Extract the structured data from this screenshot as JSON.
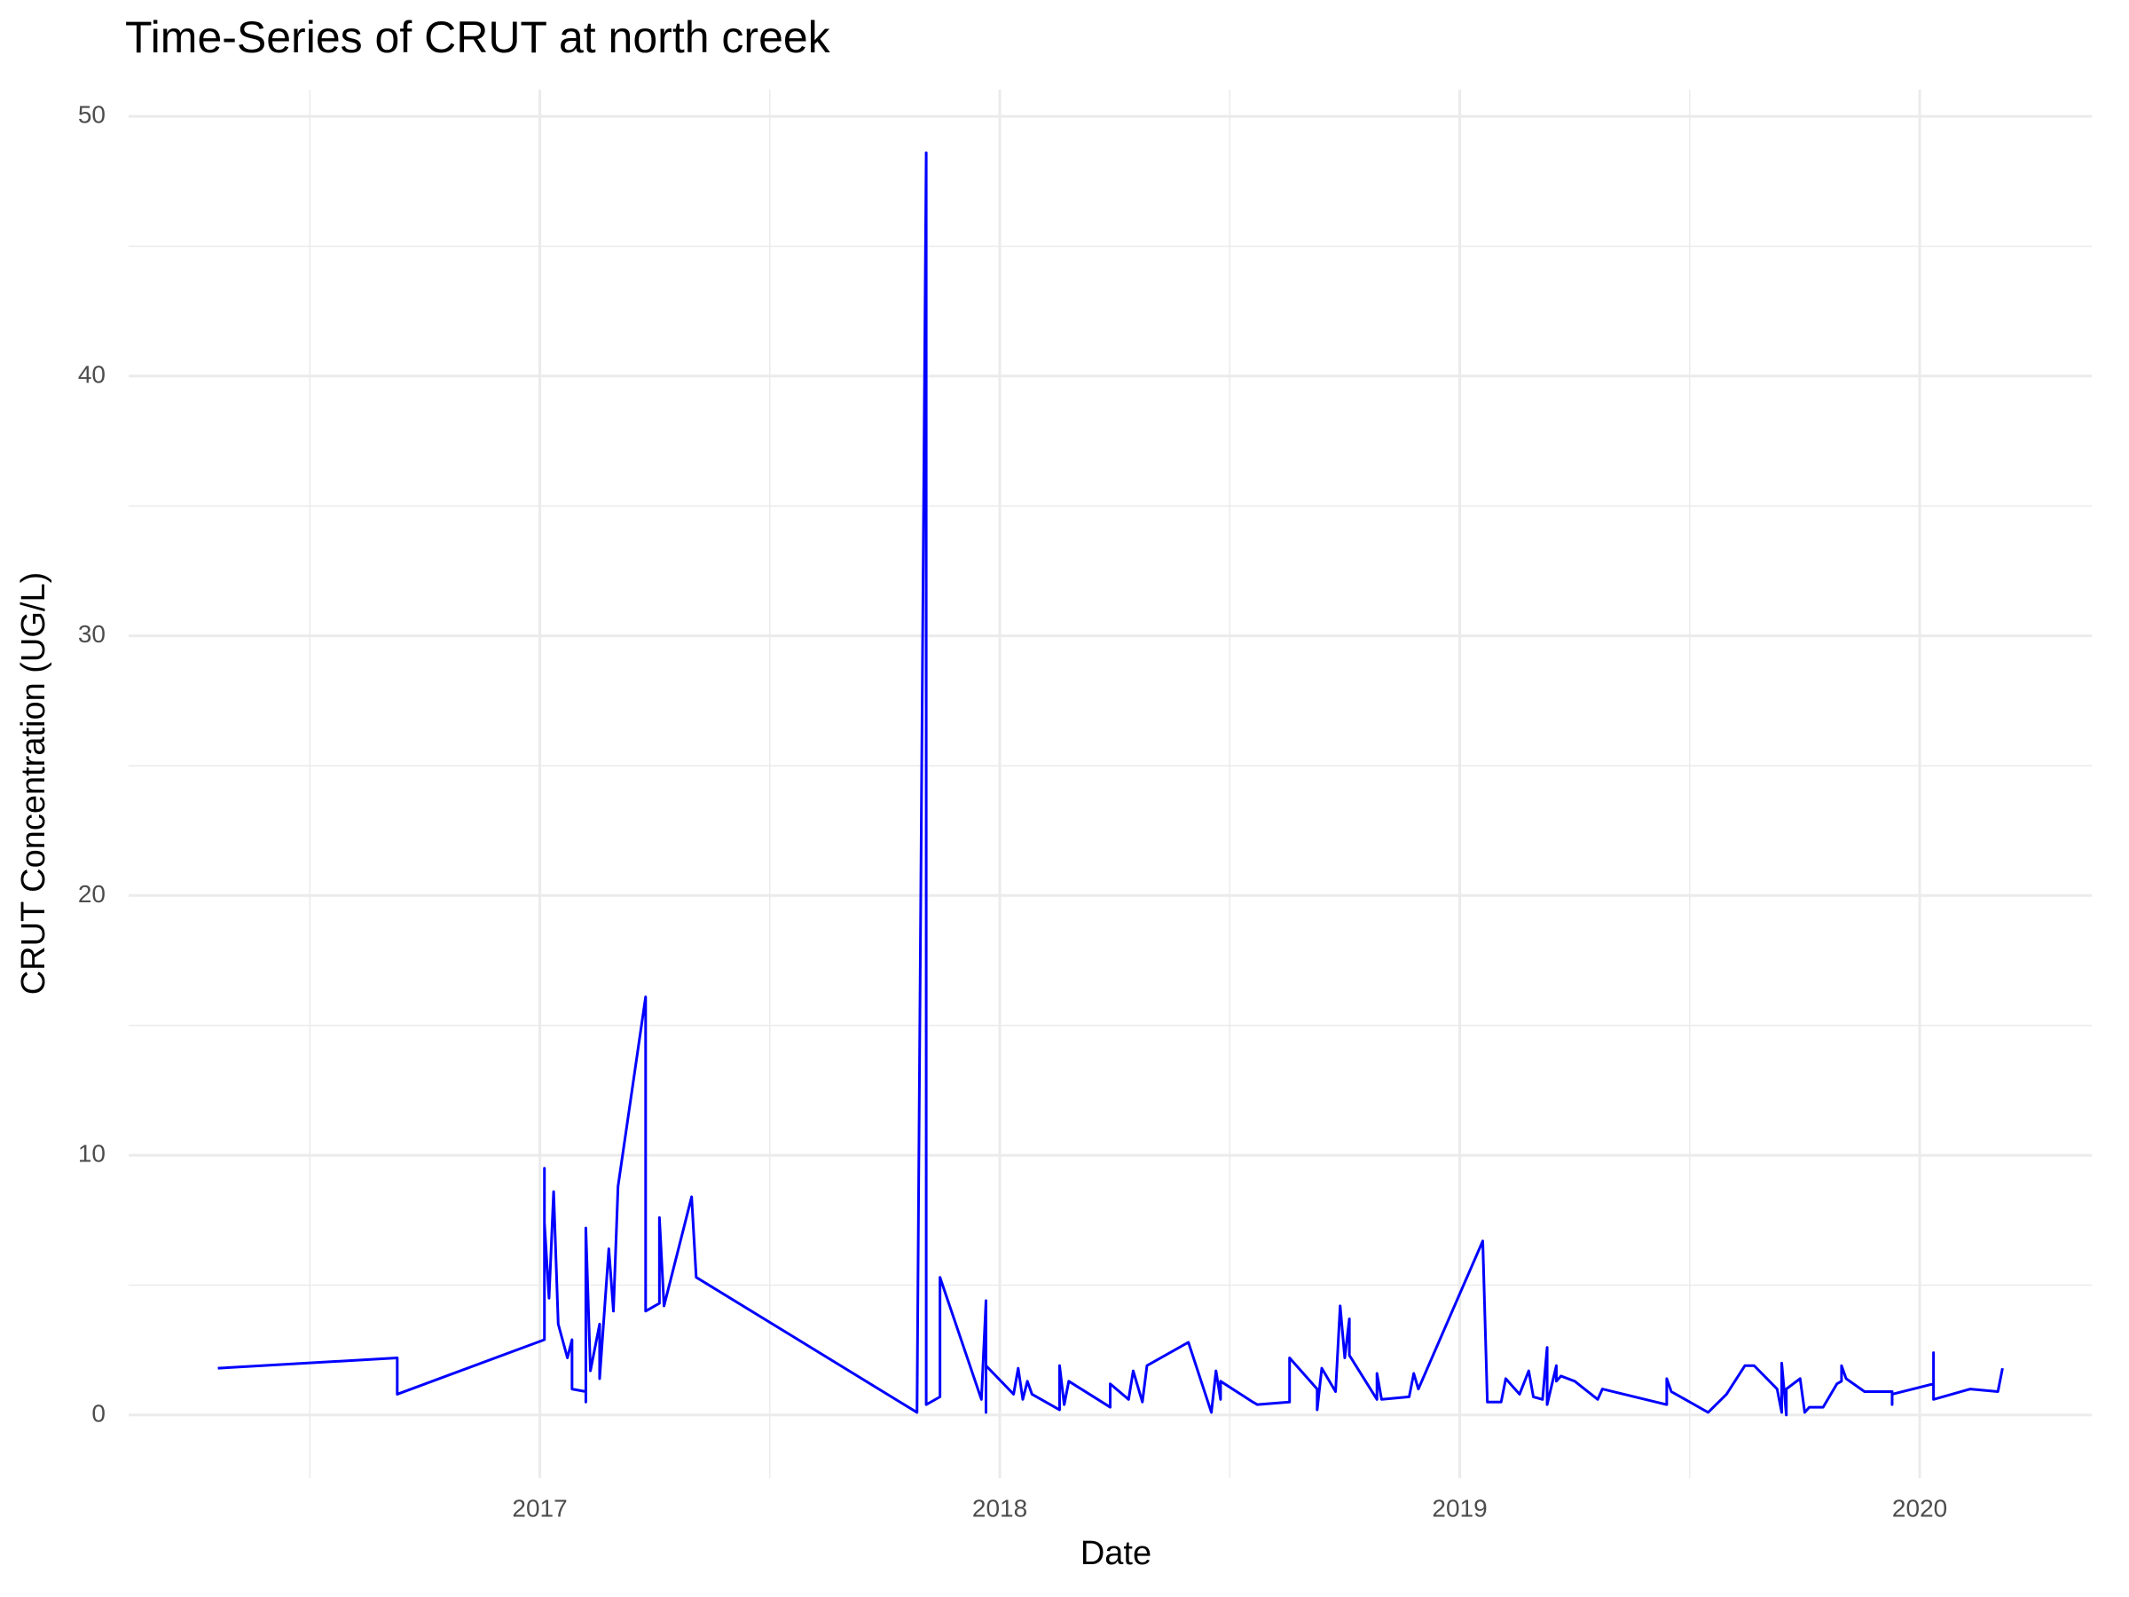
{
  "chart_data": {
    "type": "line",
    "title": "Time-Series of CRUT at north creek",
    "x_label": "Date",
    "y_label": "CRUT Concentration (UG/L)",
    "xlim": [
      2016.106,
      2020.374
    ],
    "ylim": [
      -2.43,
      51.03
    ],
    "xticks": [
      2017,
      2018,
      2019,
      2020
    ],
    "yticks": [
      0,
      10,
      20,
      30,
      40,
      50
    ],
    "xminorticks": [
      2016.5,
      2017.5,
      2018.5,
      2019.5
    ],
    "yminorticks": [
      5,
      15,
      25,
      35,
      45
    ],
    "grid": true,
    "series": [
      {
        "color": "#0000ff",
        "x": [
          2016.3,
          2016.69,
          2016.69,
          2017.01,
          2017.01,
          2017.01,
          2017.02,
          2017.03,
          2017.04,
          2017.04,
          2017.06,
          2017.07,
          2017.07,
          2017.1,
          2017.1,
          2017.1,
          2017.11,
          2017.13,
          2017.13,
          2017.15,
          2017.16,
          2017.17,
          2017.23,
          2017.23,
          2017.26,
          2017.26,
          2017.27,
          2017.33,
          2017.34,
          2017.82,
          2017.84,
          2017.84,
          2017.87,
          2017.87,
          2017.96,
          2017.97,
          2017.97,
          2017.97,
          2018.03,
          2018.04,
          2018.05,
          2018.06,
          2018.07,
          2018.13,
          2018.13,
          2018.14,
          2018.15,
          2018.24,
          2018.24,
          2018.28,
          2018.29,
          2018.31,
          2018.32,
          2018.41,
          2018.46,
          2018.47,
          2018.48,
          2018.48,
          2018.55,
          2018.56,
          2018.63,
          2018.63,
          2018.69,
          2018.69,
          2018.7,
          2018.73,
          2018.74,
          2018.75,
          2018.76,
          2018.76,
          2018.82,
          2018.82,
          2018.83,
          2018.89,
          2018.9,
          2018.91,
          2019.05,
          2019.06,
          2019.09,
          2019.1,
          2019.12,
          2019.13,
          2019.15,
          2019.16,
          2019.18,
          2019.19,
          2019.19,
          2019.21,
          2019.21,
          2019.22,
          2019.25,
          2019.3,
          2019.31,
          2019.45,
          2019.45,
          2019.46,
          2019.54,
          2019.58,
          2019.62,
          2019.64,
          2019.69,
          2019.7,
          2019.7,
          2019.71,
          2019.71,
          2019.74,
          2019.75,
          2019.76,
          2019.79,
          2019.82,
          2019.83,
          2019.83,
          2019.84,
          2019.88,
          2019.94,
          2019.94,
          2019.94,
          2020.03,
          2020.03,
          2020.03,
          2020.11,
          2020.17,
          2020.18
        ],
        "values": [
          1.8,
          2.2,
          0.8,
          2.9,
          9.5,
          7.4,
          4.5,
          8.6,
          3.5,
          3.5,
          2.2,
          2.9,
          1.0,
          0.9,
          0.5,
          7.2,
          1.7,
          3.5,
          1.4,
          6.4,
          4.0,
          8.8,
          16.1,
          4.0,
          4.3,
          7.6,
          4.2,
          8.4,
          5.3,
          0.1,
          48.6,
          0.4,
          0.7,
          5.3,
          0.6,
          4.4,
          0.1,
          1.9,
          0.8,
          1.8,
          0.6,
          1.3,
          0.8,
          0.2,
          1.9,
          0.4,
          1.3,
          0.3,
          1.2,
          0.6,
          1.7,
          0.5,
          1.9,
          2.8,
          0.1,
          1.7,
          0.6,
          1.3,
          0.5,
          0.4,
          0.5,
          2.2,
          1.0,
          0.2,
          1.8,
          0.9,
          4.2,
          2.2,
          3.7,
          2.3,
          0.6,
          1.6,
          0.6,
          0.7,
          1.6,
          1.0,
          6.7,
          0.5,
          0.5,
          1.4,
          1.0,
          0.8,
          1.7,
          0.7,
          0.6,
          2.6,
          0.4,
          1.9,
          1.3,
          1.5,
          1.3,
          0.6,
          1.0,
          0.4,
          1.4,
          0.9,
          0.1,
          0.8,
          1.9,
          1.9,
          1.0,
          0.1,
          2.0,
          0.0,
          1.0,
          1.4,
          0.1,
          0.3,
          0.3,
          1.2,
          1.3,
          1.9,
          1.4,
          0.9,
          0.9,
          0.4,
          0.8,
          1.2,
          2.4,
          0.6,
          1.0,
          0.9,
          1.8
        ]
      }
    ]
  }
}
